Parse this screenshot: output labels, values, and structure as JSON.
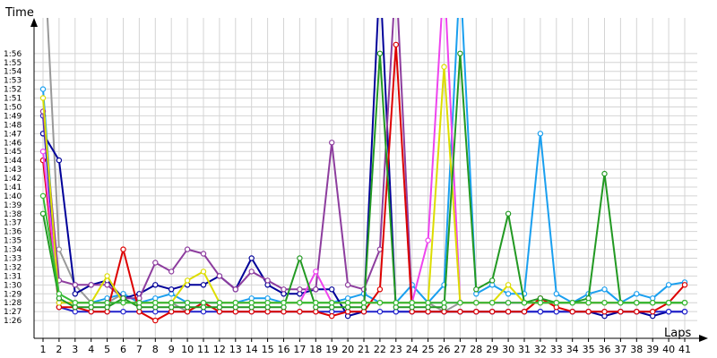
{
  "chart_data": {
    "type": "line",
    "ylabel": "Time",
    "xlabel": "Laps",
    "grid": true,
    "legend": "none",
    "xlim": [
      1,
      41
    ],
    "ylim_seconds": [
      84,
      119
    ],
    "x": [
      1,
      2,
      3,
      4,
      5,
      6,
      7,
      8,
      9,
      10,
      11,
      12,
      13,
      14,
      15,
      16,
      17,
      18,
      19,
      20,
      21,
      22,
      23,
      24,
      25,
      26,
      27,
      28,
      29,
      30,
      31,
      32,
      33,
      34,
      35,
      36,
      37,
      38,
      39,
      40,
      41
    ],
    "ytick_labels": [
      "1:26",
      "1:27",
      "1:28",
      "1:29",
      "1:30",
      "1:31",
      "1:32",
      "1:33",
      "1:34",
      "1:35",
      "1:36",
      "1:37",
      "1:38",
      "1:39",
      "1:40",
      "1:41",
      "1:42",
      "1:43",
      "1:44",
      "1:45",
      "1:46",
      "1:47",
      "1:48",
      "1:49",
      "1:50",
      "1:51",
      "1:52",
      "1:53",
      "1:54",
      "1:55",
      "1:56"
    ],
    "series": [
      {
        "color": "#999999",
        "values": [
          "2:10",
          "1:34",
          "1:30",
          "1:28",
          "1:28",
          "1:29",
          "1:28",
          "1:28",
          "1:28",
          "1:27",
          "1:28",
          "1:28",
          "1:28",
          "1:28",
          "1:28",
          "1:28",
          "1:28",
          "1:28",
          "1:28",
          "1:28",
          "1:28",
          "1:28",
          "1:28",
          "1:28",
          "1:28",
          "1:27",
          "1:28",
          "1:28",
          "1:28",
          "1:28",
          "1:28",
          "1:28",
          "1:28",
          "1:28",
          "1:28",
          "1:28",
          "1:28",
          "1:28",
          "1:28",
          "1:28",
          "1:28"
        ]
      },
      {
        "color": "#1a9fef",
        "values": [
          "1:52",
          "1:28",
          "1:28",
          "1:28",
          "1:28.5",
          "1:29",
          "1:28",
          "1:28.5",
          "1:29",
          "1:28",
          "1:28",
          "1:28",
          "1:28",
          "1:28.5",
          "1:28.5",
          "1:28",
          "1:28",
          "1:28",
          "1:28",
          "1:28.5",
          "1:29",
          "1:28",
          "1:28",
          "1:30",
          "1:28",
          "1:30",
          "2:05",
          "1:29",
          "1:30",
          "1:29",
          "1:29",
          "1:47",
          "1:29",
          "1:28",
          "1:29",
          "1:29.5",
          "1:28",
          "1:29",
          "1:28.5",
          "1:30",
          "1:30.3"
        ]
      },
      {
        "color": "#000099",
        "values": [
          "1:47",
          "1:44",
          "1:29",
          "1:30",
          "1:30.5",
          "1:28.5",
          "1:29",
          "1:30",
          "1:29.5",
          "1:30",
          "1:30",
          "1:31",
          "1:29.5",
          "1:33",
          "1:30",
          "1:29",
          "1:29",
          "1:29.5",
          "1:29.5",
          "1:26.5",
          "1:27",
          "2:05",
          "1:27",
          "1:27",
          "1:27",
          "1:27",
          "1:27",
          "1:27",
          "1:27",
          "1:27",
          "1:27",
          "1:27",
          "1:27",
          "1:27",
          "1:27",
          "1:26.5",
          "1:27",
          "1:27",
          "1:26.5",
          "1:27",
          "1:27"
        ]
      },
      {
        "color": "#2222cc",
        "values": [
          "1:49",
          "1:27.5",
          "1:27",
          "1:27",
          "1:27",
          "1:27",
          "1:27",
          "1:27",
          "1:27",
          "1:27",
          "1:27",
          "1:27",
          "1:27",
          "1:27",
          "1:27",
          "1:27",
          "1:27",
          "1:27",
          "1:27",
          "1:27",
          "1:27",
          "1:27",
          "1:27",
          "1:27",
          "1:27",
          "1:27",
          "1:27",
          "1:27",
          "1:27",
          "1:27",
          "1:27",
          "1:27",
          "1:27",
          "1:27",
          "1:27",
          "1:27",
          "1:27",
          "1:27",
          "1:27",
          "1:27",
          "1:27"
        ]
      },
      {
        "color": "#8d3d9e",
        "values": [
          "1:49.5",
          "1:30.5",
          "1:30",
          "1:30",
          "1:30",
          "1:28.5",
          "1:28.5",
          "1:32.5",
          "1:31.5",
          "1:34",
          "1:33.5",
          "1:31",
          "1:29.5",
          "1:31.5",
          "1:30.5",
          "1:29.5",
          "1:29.5",
          "1:29.5",
          "1:46",
          "1:30",
          "1:29.5",
          "1:34",
          "2:05",
          "1:28",
          "1:28",
          "1:28",
          "1:28",
          "1:28",
          "1:28",
          "1:28",
          "1:28",
          "1:28",
          "1:28",
          "1:28",
          "1:28",
          "1:28",
          "1:28",
          "1:28",
          "1:28",
          "1:28",
          "1:28"
        ]
      },
      {
        "color": "#dd0000",
        "values": [
          "1:44",
          "1:27.5",
          "1:27.5",
          "1:27",
          "1:27",
          "1:34",
          "1:27",
          "1:26",
          "1:27",
          "1:27",
          "1:28",
          "1:27",
          "1:27",
          "1:27",
          "1:27",
          "1:27",
          "1:27",
          "1:27",
          "1:26.5",
          "1:27",
          "1:27",
          "1:29.5",
          "1:57",
          "1:27",
          "1:27",
          "1:27",
          "1:27",
          "1:27",
          "1:27",
          "1:27",
          "1:27",
          "1:28.5",
          "1:27.5",
          "1:27",
          "1:27",
          "1:27",
          "1:27",
          "1:27",
          "1:27",
          "1:28",
          "1:30"
        ]
      },
      {
        "color": "#ee44ee",
        "values": [
          "1:45",
          "1:28",
          "1:28",
          "1:28",
          "1:28",
          "1:28",
          "1:28",
          "1:28",
          "1:28",
          "1:28",
          "1:28",
          "1:28",
          "1:28",
          "1:28",
          "1:28",
          "1:28",
          "1:28",
          "1:31.5",
          "1:28",
          "1:28",
          "1:28",
          "1:28",
          "1:28",
          "1:28",
          "1:35",
          "2:05",
          "1:28",
          "1:28",
          "1:28",
          "1:28",
          "1:28",
          "1:28",
          "1:28",
          "1:28",
          "1:28",
          "1:28",
          "1:28",
          "1:28",
          "1:28",
          "1:28",
          "1:28"
        ]
      },
      {
        "color": "#dddd00",
        "values": [
          "1:51",
          "1:28",
          "1:28",
          "1:28",
          "1:31",
          "1:28",
          "1:28",
          "1:28",
          "1:28",
          "1:30.5",
          "1:31.5",
          "1:28",
          "1:28",
          "1:28",
          "1:28",
          "1:28",
          "1:28",
          "1:28",
          "1:28",
          "1:28",
          "1:28",
          "1:28",
          "1:28",
          "1:28",
          "1:28",
          "1:54.5",
          "1:28",
          "1:28",
          "1:28",
          "1:30",
          "1:28",
          "1:28",
          "1:28",
          "1:28",
          "1:28",
          "1:28",
          "1:28",
          "1:28",
          "1:28",
          "1:28",
          "1:28"
        ]
      },
      {
        "color": "#229922",
        "values": [
          "1:38",
          "1:28.5",
          "1:27.5",
          "1:27.5",
          "1:27.5",
          "1:28.5",
          "1:27.5",
          "1:27.5",
          "1:27.5",
          "1:27.5",
          "1:27.5",
          "1:27.5",
          "1:27.5",
          "1:27.5",
          "1:27.5",
          "1:27.5",
          "1:33",
          "1:27.5",
          "1:27.5",
          "1:27.5",
          "1:27.5",
          "1:56",
          "1:27.5",
          "1:27.5",
          "1:27.5",
          "1:27.5",
          "1:56",
          "1:29.5",
          "1:30.5",
          "1:38",
          "1:28",
          "1:28.5",
          "1:28",
          "1:28",
          "1:28.5",
          "1:42.5",
          "1:28",
          "1:28",
          "1:28",
          "1:28",
          "1:28"
        ]
      },
      {
        "color": "#33bb33",
        "values": [
          "1:40",
          "1:29",
          "1:28",
          "1:28",
          "1:28",
          "1:28",
          "1:28",
          "1:28",
          "1:28",
          "1:28",
          "1:28",
          "1:28",
          "1:28",
          "1:28",
          "1:28",
          "1:28",
          "1:28",
          "1:28",
          "1:28",
          "1:28",
          "1:28",
          "1:28",
          "1:28",
          "1:28",
          "1:28",
          "1:28",
          "1:28",
          "1:28",
          "1:28",
          "1:28",
          "1:28",
          "1:28",
          "1:28",
          "1:28",
          "1:28",
          "1:28",
          "1:28",
          "1:28",
          "1:28",
          "1:28",
          "1:28"
        ]
      }
    ]
  }
}
